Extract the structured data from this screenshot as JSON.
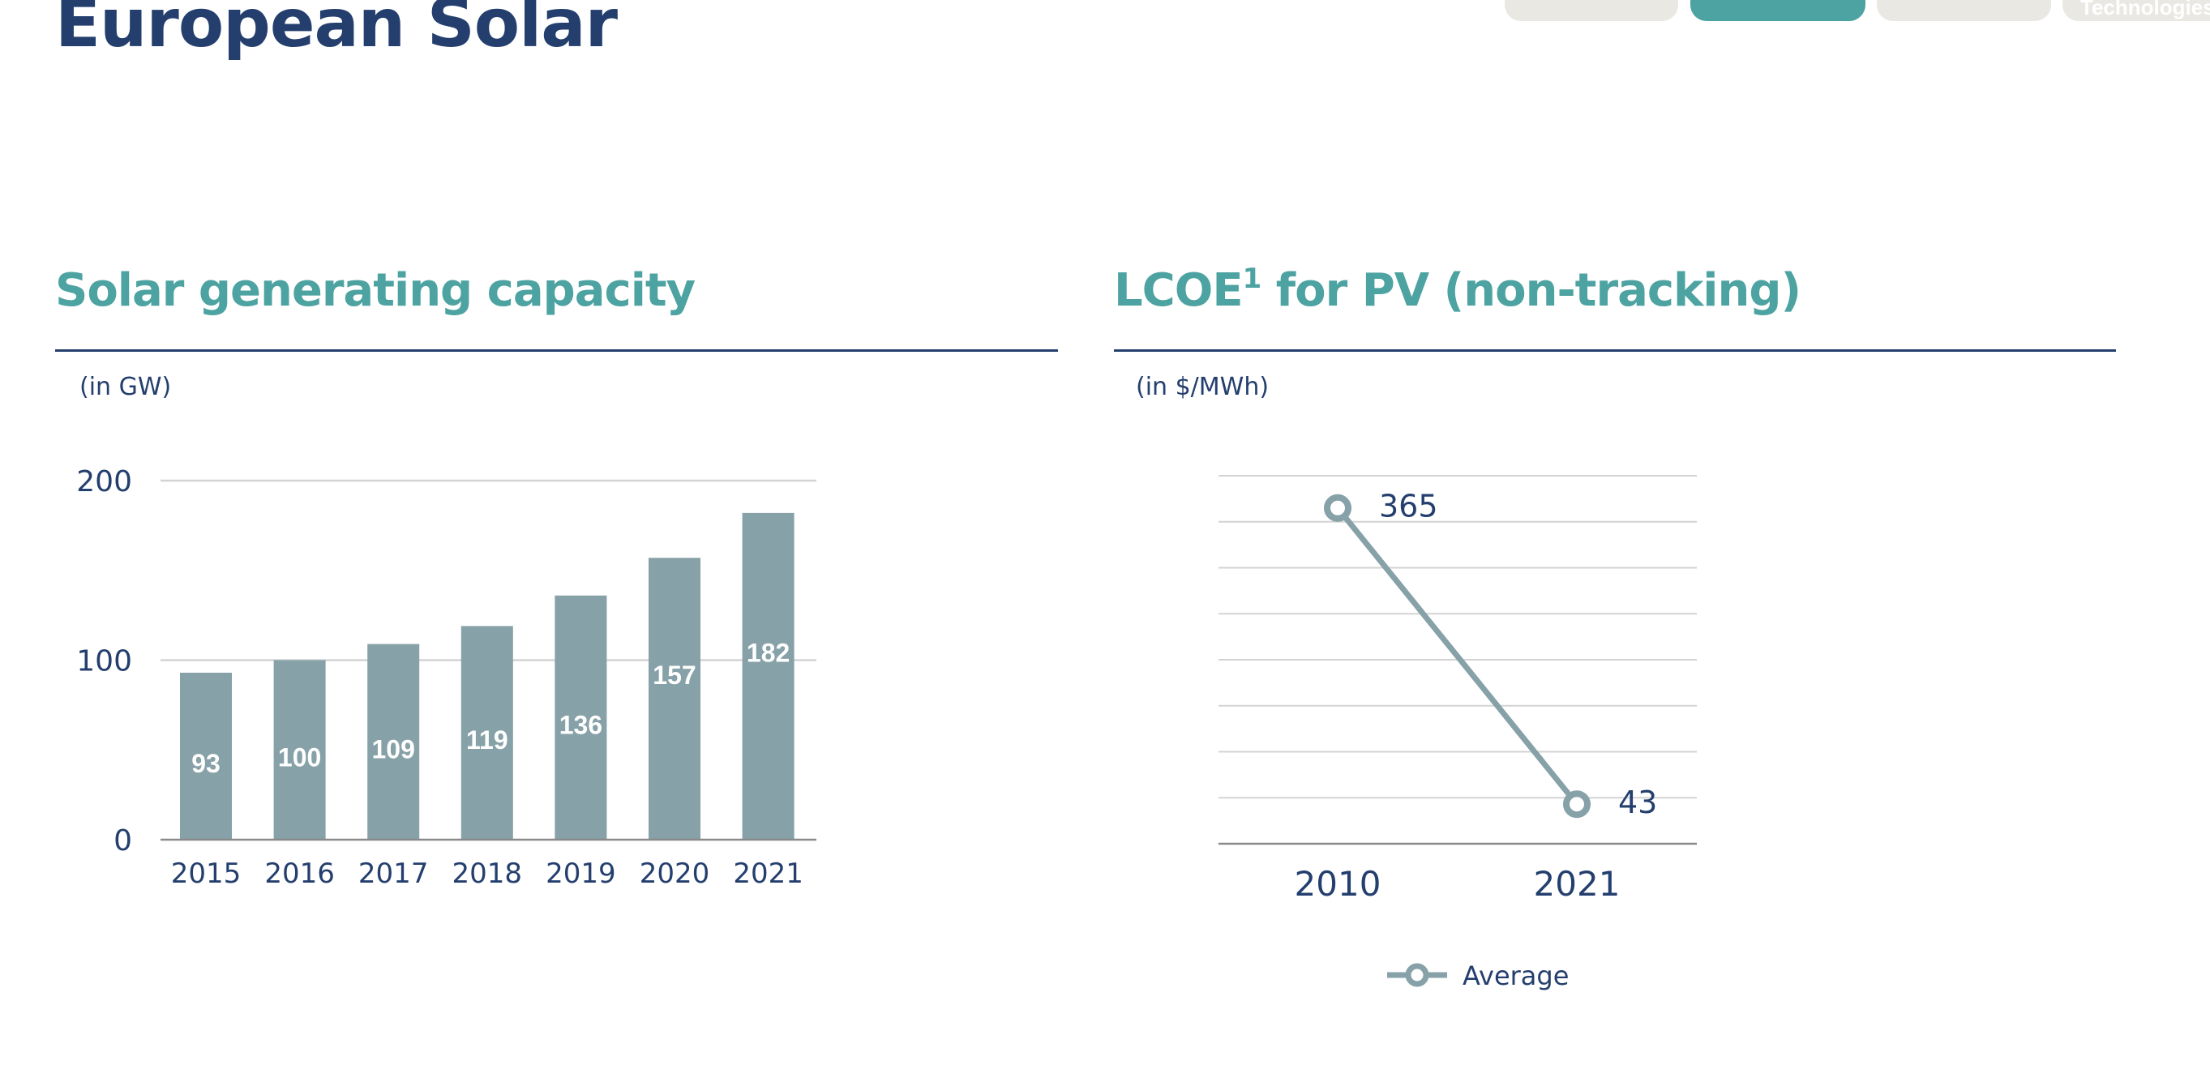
{
  "page": {
    "title": "European Solar"
  },
  "tabs": [
    {
      "label": ""
    },
    {
      "label": ""
    },
    {
      "label": ""
    },
    {
      "label": "Technologies"
    }
  ],
  "left_panel": {
    "title": "Solar generating capacity",
    "unit": "(in GW)"
  },
  "right_panel": {
    "title_main": "LCOE",
    "title_sup": "1",
    "title_rest": " for PV (non-tracking)",
    "unit": "(in $/MWh)"
  },
  "colors": {
    "accent": "#4da3a1",
    "navy": "#243f6e",
    "bar": "#86a1a7",
    "grid": "#d3d3d3"
  },
  "chart_data": [
    {
      "type": "bar",
      "categories": [
        "2015",
        "2016",
        "2017",
        "2018",
        "2019",
        "2020",
        "2021"
      ],
      "values": [
        93,
        100,
        109,
        119,
        136,
        157,
        182
      ],
      "data_labels": [
        "93",
        "100",
        "109",
        "119",
        "136",
        "157",
        "182"
      ],
      "ylim": [
        0,
        200
      ],
      "yticks": [
        "0",
        "100",
        "200"
      ],
      "grid": true
    },
    {
      "type": "line",
      "x": [
        "2010",
        "2021"
      ],
      "series": [
        {
          "name": "Average",
          "values": [
            365,
            43
          ]
        }
      ],
      "data_labels": [
        "365",
        "43"
      ],
      "ylim": [
        0,
        400
      ],
      "grid": true,
      "legend": "bottom"
    }
  ]
}
